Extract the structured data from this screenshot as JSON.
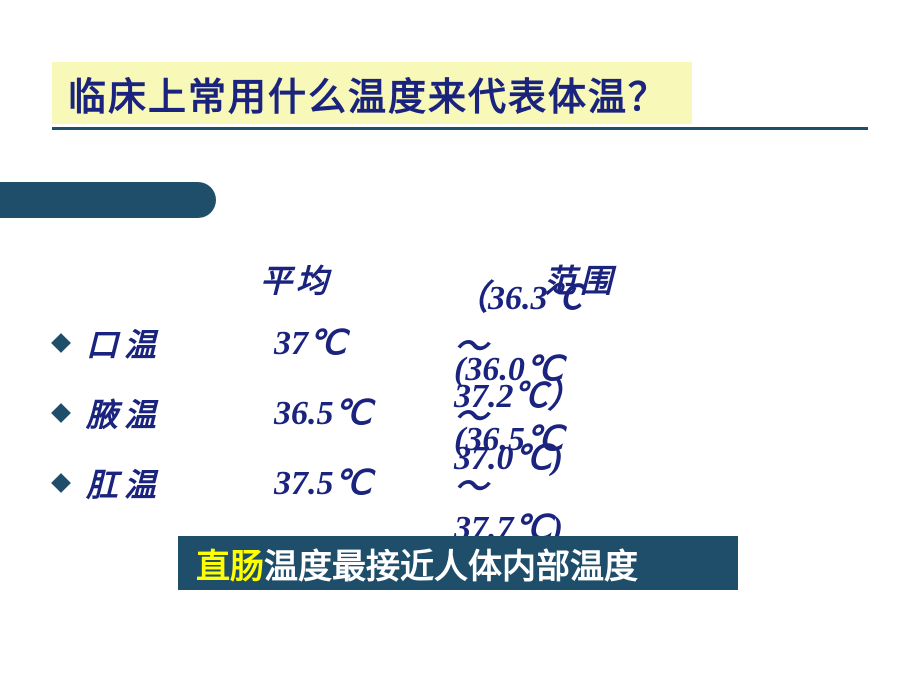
{
  "title": "临床上常用什么温度来代表体温？",
  "colors": {
    "title_bg": "#f8f8b8",
    "title_text": "#1a237e",
    "accent": "#1f4e6b",
    "body_text": "#1a237e",
    "highlight": "#ffff00",
    "footer_text": "#ffffff",
    "background": "#ffffff"
  },
  "fontsize": {
    "title": 38,
    "header": 32,
    "body": 34,
    "footer": 34
  },
  "headers": {
    "avg": "平均",
    "range": "范围"
  },
  "rows": [
    {
      "label": "口温",
      "avg": "37℃",
      "range": "（36.3℃～37.2℃）"
    },
    {
      "label": "腋温",
      "avg": "36.5℃",
      "range": "(36.0℃～37.0℃)"
    },
    {
      "label": "肛温",
      "avg": "37.5℃",
      "range": "(36.5℃～37.7℃)"
    }
  ],
  "footer": {
    "highlight": "直肠",
    "rest": "温度最接近人体内部温度"
  }
}
